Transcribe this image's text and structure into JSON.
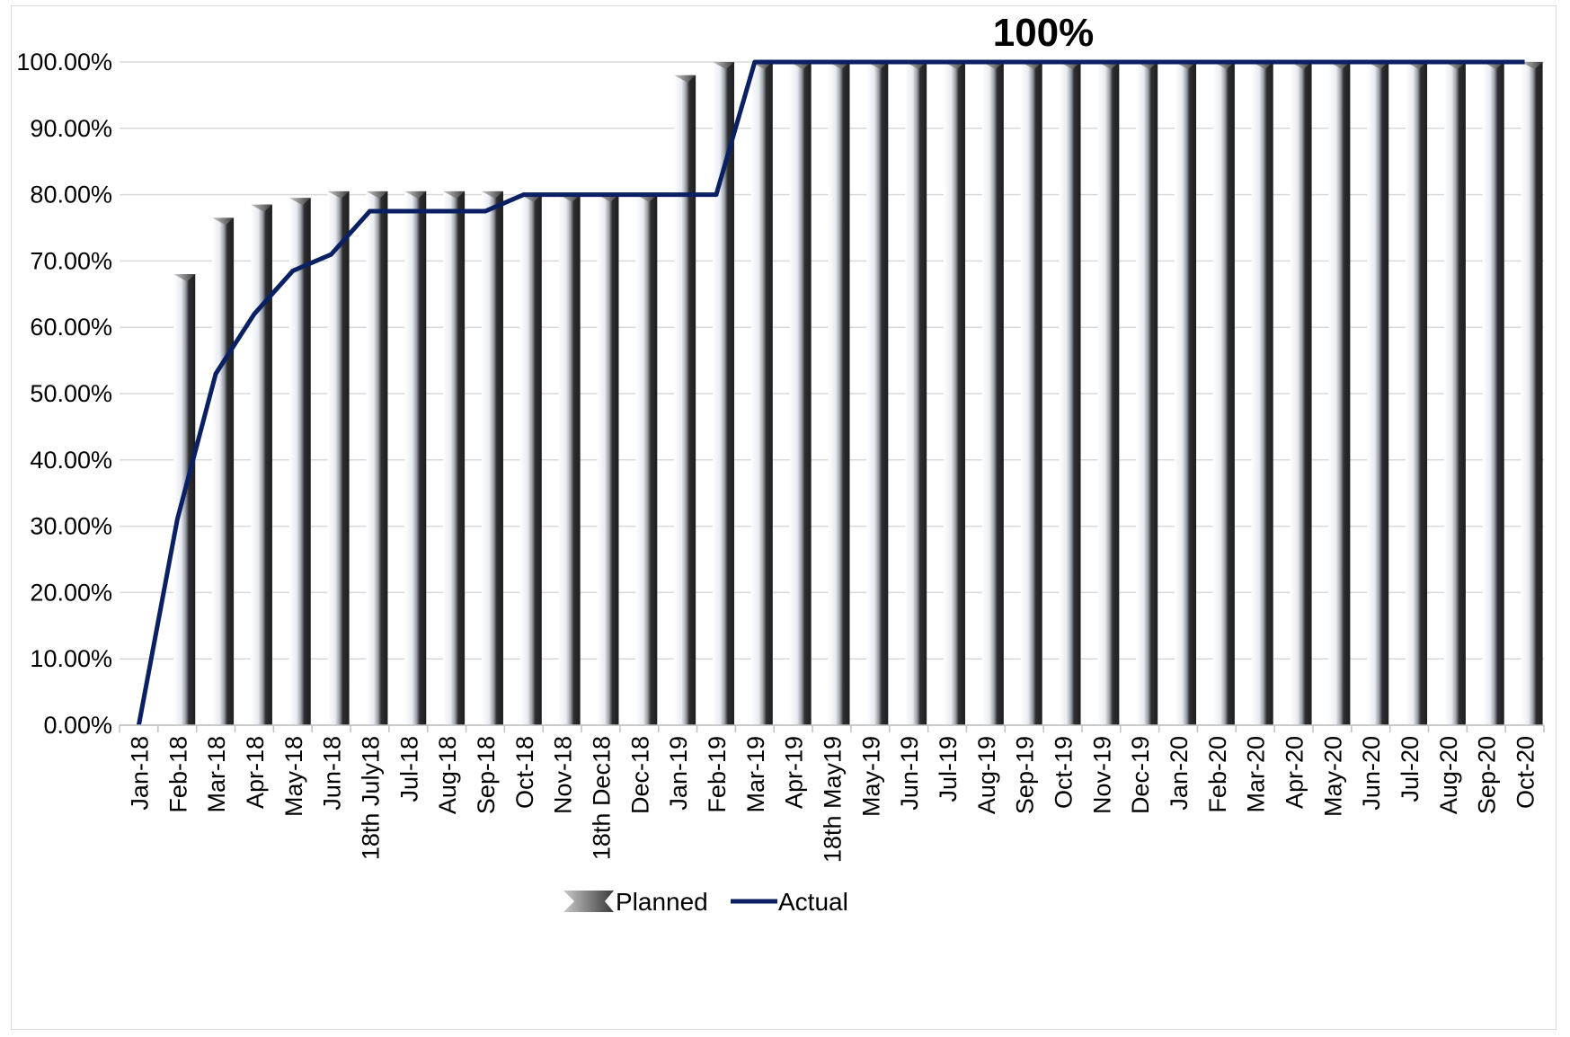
{
  "chart_data": {
    "type": "bar",
    "title": "",
    "xlabel": "",
    "ylabel": "",
    "ylim": [
      0,
      100
    ],
    "y_ticks": [
      "0.00%",
      "10.00%",
      "20.00%",
      "30.00%",
      "40.00%",
      "50.00%",
      "60.00%",
      "70.00%",
      "80.00%",
      "90.00%",
      "100.00%"
    ],
    "grid": true,
    "legend_position": "bottom",
    "annotation": "100%",
    "categories": [
      "Jan-18",
      "Feb-18",
      "Mar-18",
      "Apr-18",
      "May-18",
      "Jun-18",
      "18th July18",
      "Jul-18",
      "Aug-18",
      "Sep-18",
      "Oct-18",
      "Nov-18",
      "18th Dec18",
      "Dec-18",
      "Jan-19",
      "Feb-19",
      "Mar-19",
      "Apr-19",
      "18th May19",
      "May-19",
      "Jun-19",
      "Jul-19",
      "Aug-19",
      "Sep-19",
      "Oct-19",
      "Nov-19",
      "Dec-19",
      "Jan-20",
      "Feb-20",
      "Mar-20",
      "Apr-20",
      "May-20",
      "Jun-20",
      "Jul-20",
      "Aug-20",
      "Sep-20",
      "Oct-20"
    ],
    "series": [
      {
        "name": "Planned",
        "kind": "bar",
        "color": "#2b2b2b",
        "values": [
          0,
          68,
          76.5,
          78.5,
          79.5,
          80.5,
          80.5,
          80.5,
          80.5,
          80.5,
          80,
          80,
          80,
          80,
          98,
          100,
          100,
          100,
          100,
          100,
          100,
          100,
          100,
          100,
          100,
          100,
          100,
          100,
          100,
          100,
          100,
          100,
          100,
          100,
          100,
          100,
          100
        ]
      },
      {
        "name": "Actual",
        "kind": "line",
        "color": "#0a2062",
        "values": [
          0,
          31,
          53,
          62,
          68.5,
          71,
          77.5,
          77.5,
          77.5,
          77.5,
          80,
          80,
          80,
          80,
          80,
          80,
          100,
          100,
          100,
          100,
          100,
          100,
          100,
          100,
          100,
          100,
          100,
          100,
          100,
          100,
          100,
          100,
          100,
          100,
          100,
          100,
          100
        ]
      }
    ]
  }
}
